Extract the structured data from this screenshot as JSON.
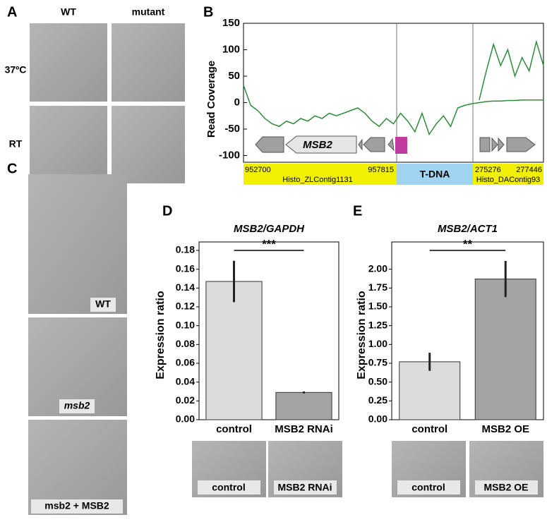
{
  "panel_labels": [
    "A",
    "B",
    "C",
    "D",
    "E"
  ],
  "panel_a": {
    "columns": [
      "WT",
      "mutant"
    ],
    "rows": [
      "37ºC",
      "RT"
    ]
  },
  "panel_c": {
    "captions": [
      "WT",
      "msb2",
      "msb2 + MSB2"
    ]
  },
  "chart_data": [
    {
      "type": "line",
      "y_label": "Read Coverage",
      "ylim": [
        -110,
        150
      ],
      "yticks": [
        150,
        100,
        50,
        0,
        -50,
        -100
      ],
      "series": [
        {
          "color": "#2e8b3a",
          "values": [
            33,
            -5,
            -15,
            -30,
            -40,
            -45,
            -35,
            -40,
            -30,
            -35,
            -25,
            -30,
            -20,
            -25,
            -20,
            -15,
            -10,
            -20,
            -35,
            -45,
            -30,
            -40,
            -20,
            -35,
            -55,
            -20,
            -60,
            -40,
            -25,
            -45,
            -10,
            -5,
            -2,
            0,
            2,
            3,
            3,
            4,
            4,
            5,
            5,
            5,
            5
          ]
        },
        {
          "color": "#2e8b3a",
          "values": [
            null,
            null,
            null,
            null,
            null,
            null,
            null,
            null,
            null,
            null,
            null,
            null,
            null,
            null,
            null,
            null,
            null,
            null,
            null,
            null,
            null,
            null,
            null,
            null,
            null,
            null,
            null,
            null,
            null,
            null,
            null,
            null,
            null,
            5,
            60,
            110,
            70,
            100,
            50,
            85,
            60,
            115,
            70
          ]
        }
      ],
      "gene_label": "MSB2",
      "regions": [
        {
          "name": "Histo_ZLContig1131",
          "start": "952700",
          "end": "957815"
        },
        {
          "name": "T-DNA"
        },
        {
          "name": "Histo_DAContig93",
          "start": "275276",
          "end": "277446"
        }
      ]
    },
    {
      "type": "bar",
      "title": "MSB2/GAPDH",
      "y_label": "Expression ratio",
      "categories": [
        "control",
        "MSB2 RNAi"
      ],
      "values": [
        0.147,
        0.029
      ],
      "errors": [
        0.022,
        0.001
      ],
      "colors": [
        "#dcdcdc",
        "#a3a3a3"
      ],
      "significance": "***",
      "ylim": [
        0,
        0.18
      ],
      "yticks": [
        {
          "value": 0,
          "label": "0.00"
        },
        {
          "value": 0.02,
          "label": "0.02"
        },
        {
          "value": 0.04,
          "label": "0.04"
        },
        {
          "value": 0.06,
          "label": "0.06"
        },
        {
          "value": 0.08,
          "label": "0.08"
        },
        {
          "value": 0.1,
          "label": "0.10"
        },
        {
          "value": 0.12,
          "label": "0.12"
        },
        {
          "value": 0.14,
          "label": "0.14"
        },
        {
          "value": 0.16,
          "label": "0.16"
        },
        {
          "value": 0.18,
          "label": "0.18"
        }
      ],
      "image_captions": [
        "control",
        "MSB2 RNAi"
      ]
    },
    {
      "type": "bar",
      "title": "MSB2/ACT1",
      "y_label": "Expression ratio",
      "categories": [
        "control",
        "MSB2 OE"
      ],
      "values": [
        0.77,
        1.87
      ],
      "errors": [
        0.12,
        0.24
      ],
      "colors": [
        "#dcdcdc",
        "#a3a3a3"
      ],
      "significance": "**",
      "ylim": [
        0,
        2.25
      ],
      "yticks": [
        {
          "value": 0,
          "label": "0.00"
        },
        {
          "value": 0.25,
          "label": "0.25"
        },
        {
          "value": 0.5,
          "label": "0.50"
        },
        {
          "value": 0.75,
          "label": "0.75"
        },
        {
          "value": 1,
          "label": "1.00"
        },
        {
          "value": 1.25,
          "label": "1.25"
        },
        {
          "value": 1.5,
          "label": "1.50"
        },
        {
          "value": 1.75,
          "label": "1.75"
        },
        {
          "value": 2,
          "label": "2.00"
        }
      ],
      "image_captions": [
        "control",
        "MSB2 OE"
      ]
    }
  ]
}
